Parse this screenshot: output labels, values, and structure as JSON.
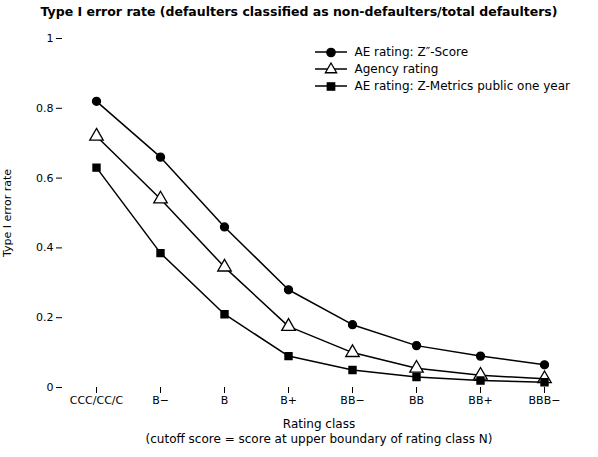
{
  "chart_data": {
    "type": "line",
    "title": "Type I error rate (defaulters classified as non-defaulters/total defaulters)",
    "xlabel": "Rating class\n(cutoff score = score at upper boundary of rating class N)",
    "ylabel": "Type I error rate",
    "categories": [
      "CCC/CC/C",
      "B−",
      "B",
      "B+",
      "BB−",
      "BB",
      "BB+",
      "BBB−"
    ],
    "series": [
      {
        "name": "AE rating: Z″-Score",
        "color": "#000000",
        "marker": "circle",
        "line_style": "solid",
        "values": [
          0.82,
          0.66,
          0.46,
          0.28,
          0.18,
          0.12,
          0.09,
          0.065
        ]
      },
      {
        "name": "Agency rating",
        "color": "#000000",
        "marker": "triangle-open",
        "line_style": "solid",
        "values": [
          0.72,
          0.54,
          0.345,
          0.175,
          0.1,
          0.055,
          0.035,
          0.025
        ]
      },
      {
        "name": "AE rating: Z-Metrics public one year",
        "color": "#000000",
        "marker": "square",
        "line_style": "solid",
        "values": [
          0.63,
          0.385,
          0.21,
          0.09,
          0.05,
          0.03,
          0.02,
          0.015
        ]
      }
    ],
    "ylim": [
      0,
      1.0
    ],
    "yticks": [
      0,
      0.2,
      0.4,
      0.6,
      0.8,
      1
    ],
    "legend": "upper right"
  }
}
